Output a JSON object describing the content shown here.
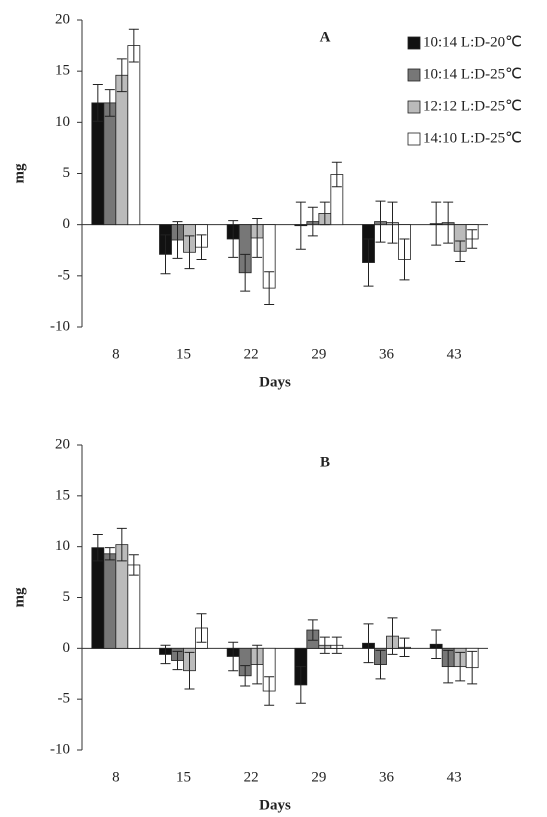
{
  "chart_data": [
    {
      "type": "bar",
      "title": "A",
      "x_label": "Days",
      "y_label": "mg",
      "categories": [
        "8",
        "15",
        "22",
        "29",
        "36",
        "43"
      ],
      "ylim": [
        -10,
        20
      ],
      "yticks": [
        -10,
        -5,
        0,
        5,
        10,
        15,
        20
      ],
      "legend": "upper right",
      "series": [
        {
          "name": "10:14 L:D-20℃",
          "color": "#111111",
          "values": [
            11.9,
            -2.9,
            -1.4,
            -0.1,
            -3.7,
            0.1
          ],
          "errors": [
            1.8,
            1.9,
            1.8,
            2.3,
            2.3,
            2.1
          ]
        },
        {
          "name": "10:14 L:D-25℃",
          "color": "#777777",
          "values": [
            11.9,
            -1.5,
            -4.7,
            0.3,
            0.3,
            0.2
          ],
          "errors": [
            1.3,
            1.8,
            1.8,
            1.4,
            2.0,
            2.0
          ]
        },
        {
          "name": "12:12 L:D-25℃",
          "color": "#bbbbbb",
          "values": [
            14.6,
            -2.7,
            -1.3,
            1.1,
            0.2,
            -2.6
          ],
          "errors": [
            1.6,
            1.6,
            1.9,
            1.1,
            2.0,
            1.0
          ]
        },
        {
          "name": "14:10 L:D-25℃",
          "color": "#ffffff",
          "values": [
            17.5,
            -2.2,
            -6.2,
            4.9,
            -3.4,
            -1.4
          ],
          "errors": [
            1.6,
            1.2,
            1.6,
            1.2,
            2.0,
            0.9
          ]
        }
      ]
    },
    {
      "type": "bar",
      "title": "B",
      "x_label": "Days",
      "y_label": "mg",
      "categories": [
        "8",
        "15",
        "22",
        "29",
        "36",
        "43"
      ],
      "ylim": [
        -10,
        20
      ],
      "yticks": [
        -10,
        -5,
        0,
        5,
        10,
        15,
        20
      ],
      "series": [
        {
          "color": "#111111",
          "values": [
            9.9,
            -0.6,
            -0.8,
            -3.6,
            0.5,
            0.4
          ],
          "errors": [
            1.3,
            0.9,
            1.4,
            1.8,
            1.9,
            1.4
          ]
        },
        {
          "color": "#777777",
          "values": [
            9.3,
            -1.2,
            -2.7,
            1.8,
            -1.6,
            -1.8
          ],
          "errors": [
            0.6,
            0.9,
            1.0,
            1.0,
            1.4,
            1.6
          ]
        },
        {
          "color": "#bbbbbb",
          "values": [
            10.2,
            -2.2,
            -1.6,
            0.3,
            1.2,
            -1.8
          ],
          "errors": [
            1.6,
            1.8,
            1.9,
            0.8,
            1.8,
            1.4
          ]
        },
        {
          "color": "#ffffff",
          "values": [
            8.2,
            2.0,
            -4.2,
            0.3,
            0.1,
            -1.9
          ],
          "errors": [
            1.0,
            1.4,
            1.4,
            0.8,
            0.9,
            1.6
          ]
        }
      ]
    }
  ]
}
